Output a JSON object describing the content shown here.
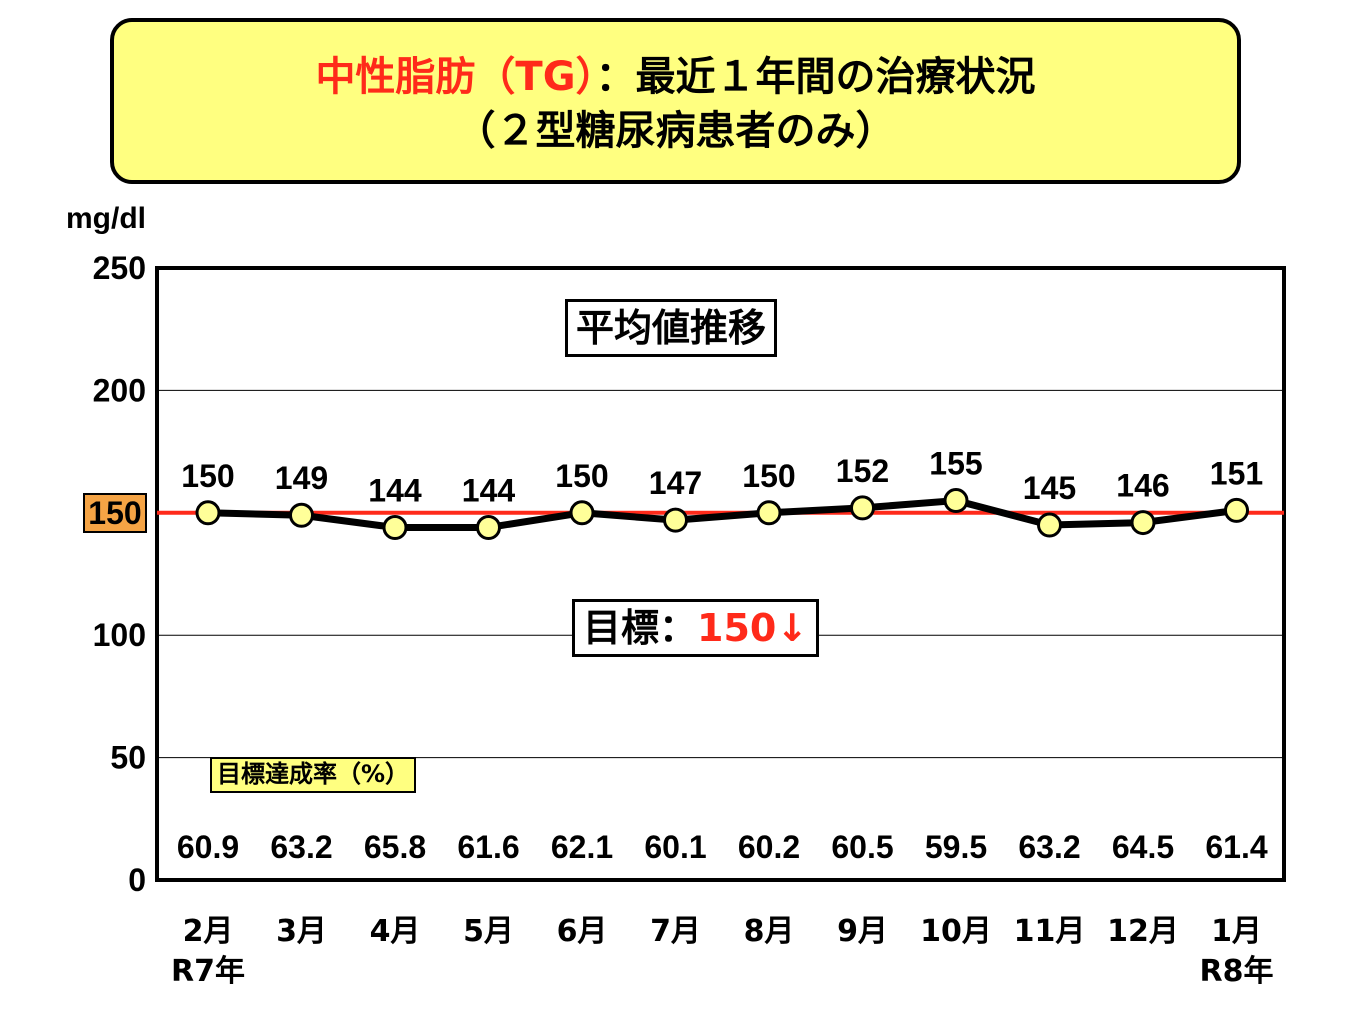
{
  "title": {
    "line1_red": "中性脂肪（TG）",
    "line1_rest": "：最近１年間の治療状況",
    "line2": "（２型糖尿病患者のみ）"
  },
  "unit_label": "mg/dl",
  "annotations": {
    "average_trend": "平均値推移",
    "target_prefix": "目標：",
    "target_value": "150↓",
    "achievement_rate_label": "目標達成率（%）"
  },
  "target_marker_label": "150",
  "chart_data": {
    "type": "line",
    "categories": [
      "2月",
      "3月",
      "4月",
      "5月",
      "6月",
      "7月",
      "8月",
      "9月",
      "10月",
      "11月",
      "12月",
      "1月"
    ],
    "year_labels": [
      "R7年",
      "",
      "",
      "",
      "",
      "",
      "",
      "",
      "",
      "",
      "",
      "R8年"
    ],
    "series": [
      {
        "values": [
          150,
          149,
          144,
          144,
          150,
          147,
          150,
          152,
          155,
          145,
          146,
          151
        ]
      }
    ],
    "achievement_rate": [
      "60.9",
      "63.2",
      "65.8",
      "61.6",
      "62.1",
      "60.1",
      "60.2",
      "60.5",
      "59.5",
      "63.2",
      "64.5",
      "61.4"
    ],
    "target_line": 150,
    "ylim": [
      0,
      250
    ],
    "yticks": [
      0,
      50,
      100,
      150,
      200,
      250
    ],
    "grid": true,
    "colors": {
      "series_line": "#000000",
      "marker_fill": "#ffff99",
      "target_line": "#ff2a1a",
      "target_marker": "#f5a445",
      "title_bg": "#ffff80"
    }
  }
}
